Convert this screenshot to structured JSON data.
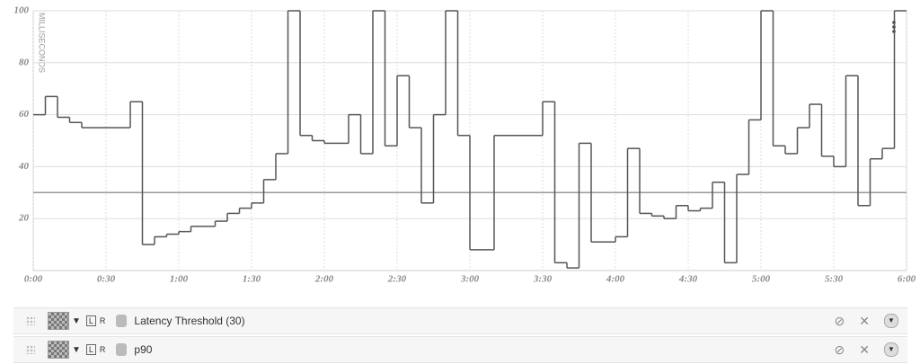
{
  "chart_data": {
    "type": "line",
    "y_label": "MILLISECONDS",
    "x": [
      0,
      5,
      10,
      15,
      20,
      25,
      30,
      35,
      40,
      45,
      50,
      55,
      60,
      65,
      70,
      75,
      80,
      85,
      90,
      95,
      100,
      105,
      110,
      115,
      120,
      125,
      130,
      135,
      140,
      145,
      150,
      155,
      160,
      165,
      170,
      175,
      180,
      185,
      190,
      195,
      200,
      205,
      210,
      215,
      220,
      225,
      230,
      235,
      240,
      245,
      250,
      255,
      260,
      265,
      270,
      275,
      280,
      285,
      290,
      295,
      300,
      305,
      310,
      315,
      320,
      325,
      330,
      335,
      340,
      345,
      350,
      355
    ],
    "series": [
      {
        "name": "p90",
        "color": "#555555",
        "values": [
          60,
          67,
          59,
          57,
          55,
          55,
          55,
          55,
          65,
          10,
          13,
          14,
          15,
          17,
          17,
          19,
          22,
          24,
          26,
          35,
          45,
          100,
          52,
          50,
          49,
          49,
          60,
          45,
          100,
          48,
          75,
          55,
          26,
          60,
          100,
          52,
          8,
          8,
          52,
          52,
          52,
          52,
          65,
          3,
          1,
          49,
          11,
          11,
          13,
          47,
          22,
          21,
          20,
          25,
          23,
          24,
          34,
          3,
          37,
          58,
          100,
          48,
          45,
          55,
          64,
          44,
          40,
          75,
          25,
          43,
          47,
          100
        ]
      }
    ],
    "threshold": {
      "name": "Latency Threshold (30)",
      "value": 30,
      "color": "#999999"
    },
    "xlim": [
      0,
      360
    ],
    "ylim": [
      0,
      100
    ],
    "yticks": [
      20,
      40,
      60,
      80,
      100
    ],
    "xticks": [
      {
        "value": 0,
        "label": "0:00"
      },
      {
        "value": 30,
        "label": "0:30"
      },
      {
        "value": 60,
        "label": "1:00"
      },
      {
        "value": 90,
        "label": "1:30"
      },
      {
        "value": 120,
        "label": "2:00"
      },
      {
        "value": 150,
        "label": "2:30"
      },
      {
        "value": 180,
        "label": "3:00"
      },
      {
        "value": 210,
        "label": "3:30"
      },
      {
        "value": 240,
        "label": "4:00"
      },
      {
        "value": 270,
        "label": "4:30"
      },
      {
        "value": 300,
        "label": "5:00"
      },
      {
        "value": 330,
        "label": "5:30"
      },
      {
        "value": 360,
        "label": "6:00"
      }
    ],
    "grid": true
  },
  "legend_rows": {
    "left_axis": "L",
    "right_axis": "R"
  }
}
